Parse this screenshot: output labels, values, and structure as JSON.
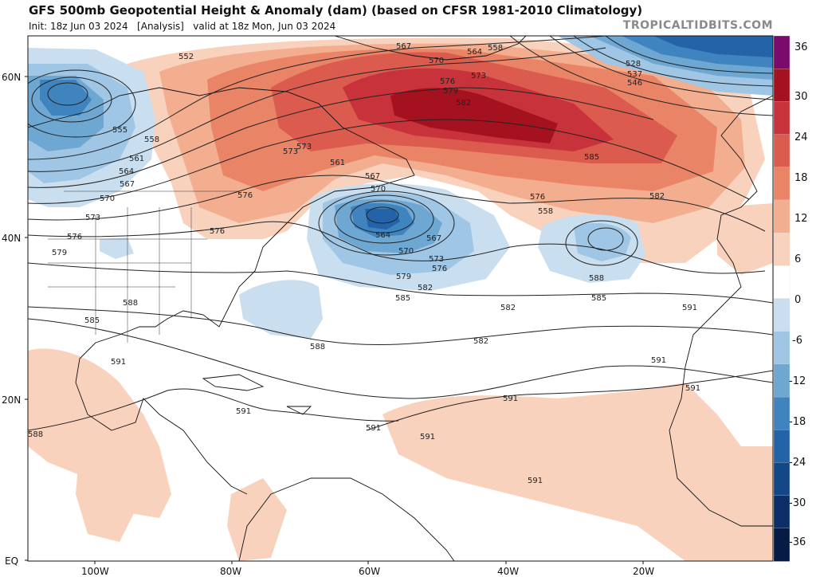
{
  "header": {
    "title": "GFS 500mb Geopotential Height & Anomaly (dam) (based on CFSR 1981-2010 Climatology)",
    "subtitle": "Init: 18z Jun 03 2024   [Analysis]   valid at 18z Mon, Jun 03 2024",
    "brand": "TROPICALTIDBITS.COM"
  },
  "axes": {
    "lat_labels": [
      "60N",
      "40N",
      "20N",
      "EQ"
    ],
    "lon_labels": [
      "100W",
      "80W",
      "60W",
      "40W",
      "20W"
    ]
  },
  "colorbar": {
    "labels": [
      "36",
      "30",
      "24",
      "18",
      "12",
      "6",
      "0",
      "-6",
      "-12",
      "-18",
      "-24",
      "-30",
      "-36"
    ],
    "colors": [
      "#7b0a6e",
      "#a5121f",
      "#c8323a",
      "#db5b4e",
      "#e98467",
      "#f3ae90",
      "#f9d2bd",
      "#ffffff",
      "#c9dff0",
      "#9fc6e4",
      "#6ea7d2",
      "#3f83bf",
      "#2463a8",
      "#134785",
      "#0b2f66",
      "#071c45"
    ]
  },
  "contour_labels": [
    "552",
    "567",
    "570",
    "564",
    "558",
    "573",
    "528",
    "537",
    "546",
    "576",
    "579",
    "582",
    "555",
    "558",
    "561",
    "564",
    "567",
    "570",
    "573",
    "576",
    "579",
    "585",
    "573",
    "561",
    "567",
    "570",
    "576",
    "573",
    "576",
    "582",
    "576",
    "558",
    "564",
    "567",
    "570",
    "573",
    "576",
    "579",
    "582",
    "585",
    "588",
    "585",
    "588",
    "582",
    "582",
    "585",
    "588",
    "591",
    "591",
    "591",
    "588",
    "591",
    "591",
    "591",
    "591",
    "591",
    "591"
  ]
}
